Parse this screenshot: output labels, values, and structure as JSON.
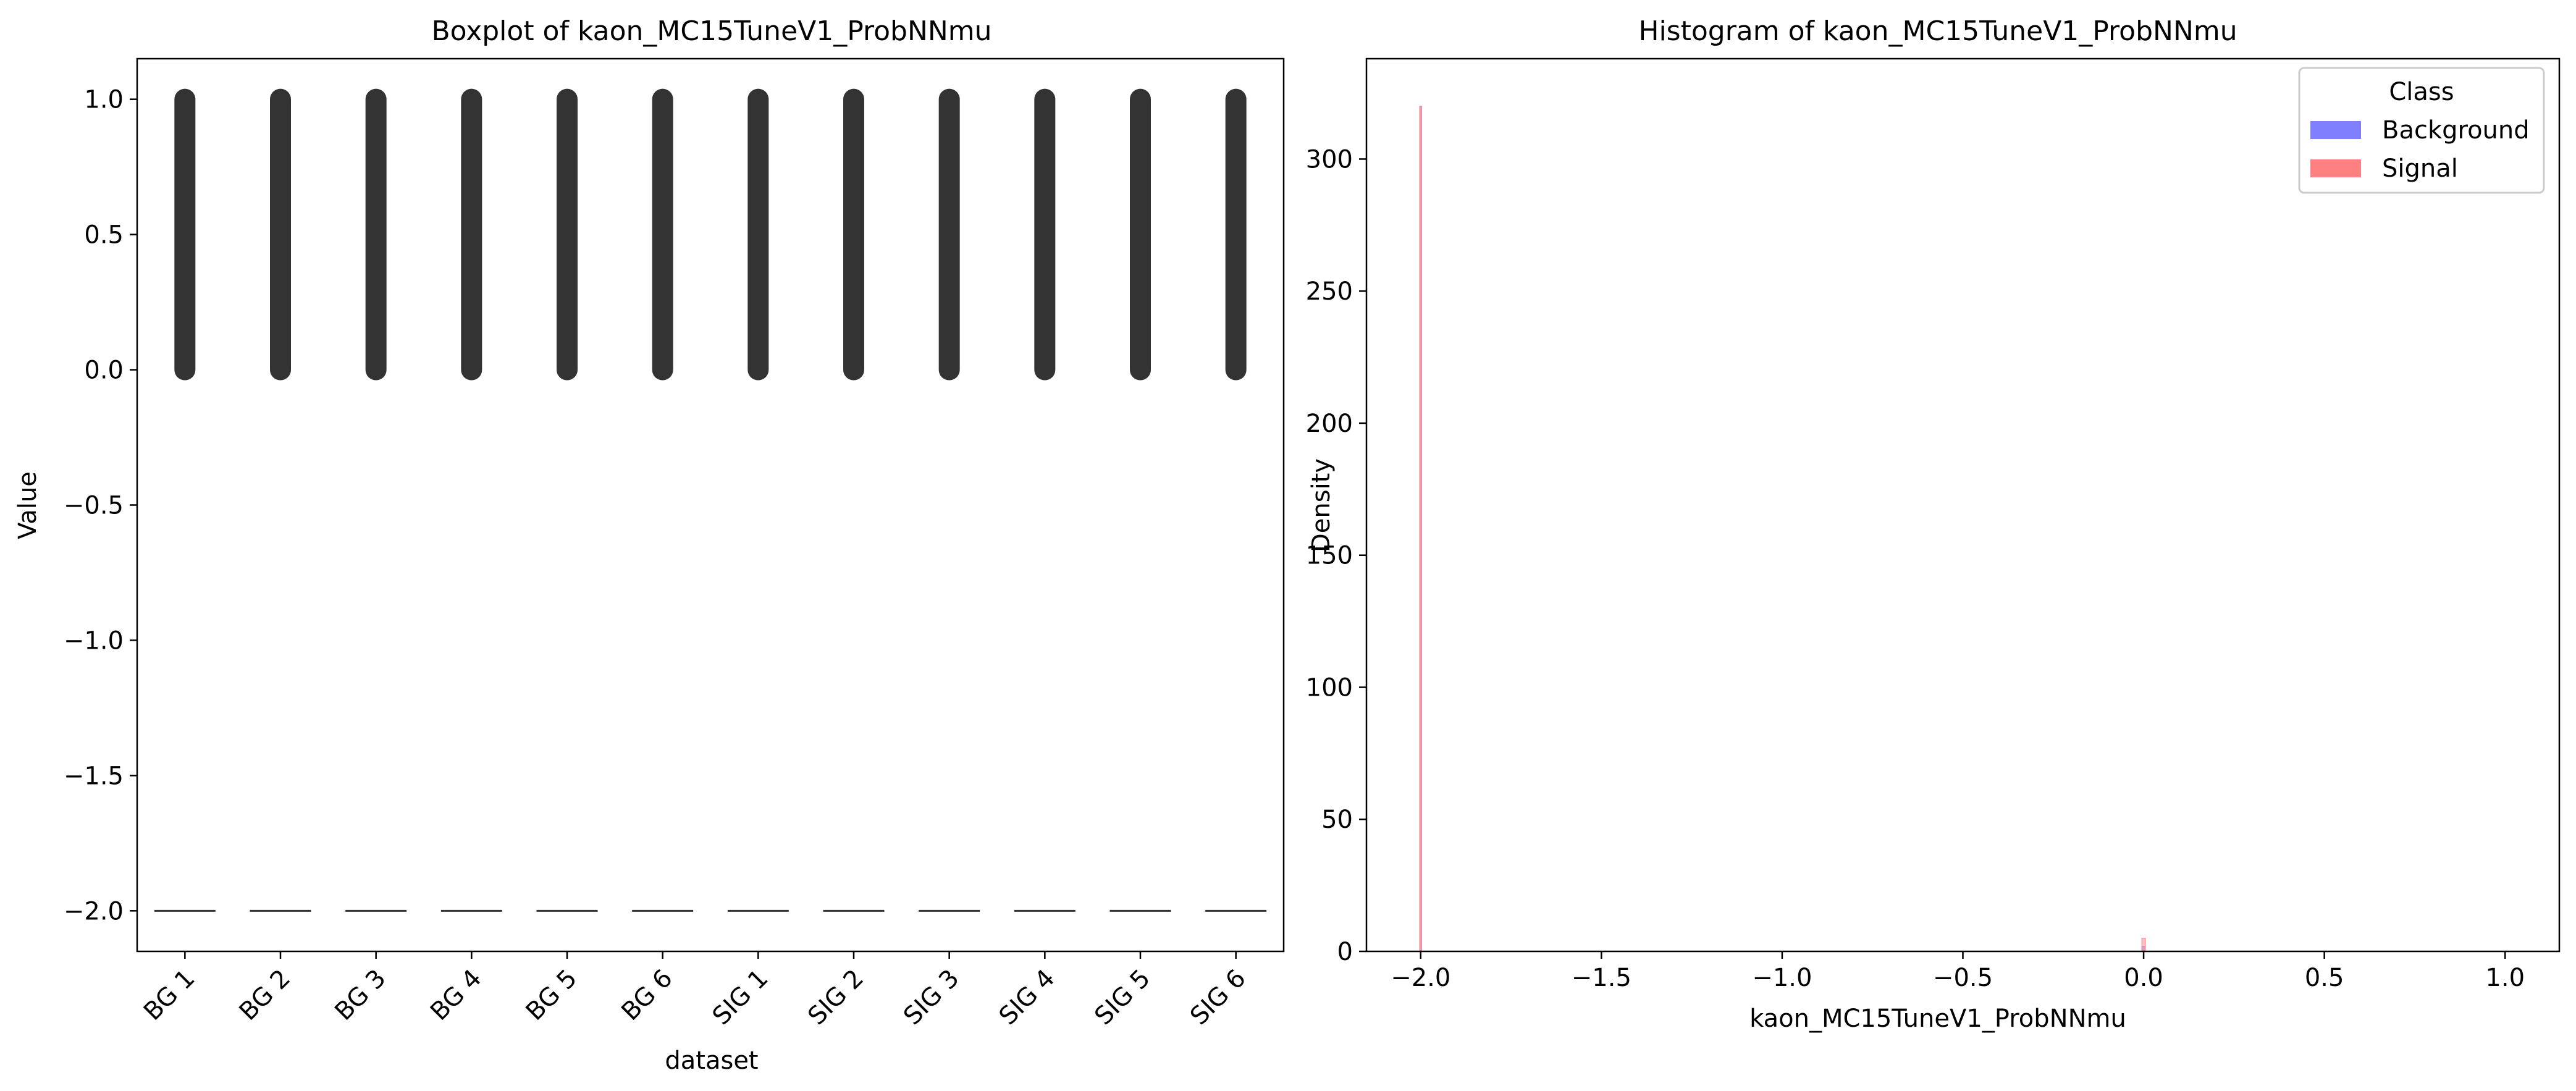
{
  "chart_data": [
    {
      "type": "box",
      "title": "Boxplot of kaon_MC15TuneV1_ProbNNmu",
      "xlabel": "dataset",
      "ylabel": "Value",
      "ylim": [
        -2.15,
        1.15
      ],
      "yticks": [
        1.0,
        0.5,
        0.0,
        -0.5,
        -1.0,
        -1.5,
        -2.0
      ],
      "ytick_labels": [
        "1.0",
        "0.5",
        "0.0",
        "−0.5",
        "−1.0",
        "−1.5",
        "−2.0"
      ],
      "categories": [
        "BG 1",
        "BG 2",
        "BG 3",
        "BG 4",
        "BG 5",
        "BG 6",
        "SIG 1",
        "SIG 2",
        "SIG 3",
        "SIG 4",
        "SIG 5",
        "SIG 6"
      ],
      "boxes": {
        "median": -2.0,
        "q1": -2.0,
        "q3": -2.0,
        "whisker_low": -2.0,
        "whisker_high": -2.0,
        "outlier_range": [
          0.0,
          1.0
        ]
      },
      "box_color": "#333333"
    },
    {
      "type": "histogram",
      "title": "Histogram of kaon_MC15TuneV1_ProbNNmu",
      "xlabel": "kaon_MC15TuneV1_ProbNNmu",
      "ylabel": "Density",
      "xlim": [
        -2.15,
        1.15
      ],
      "ylim": [
        0,
        338
      ],
      "xticks": [
        -2.0,
        -1.5,
        -1.0,
        -0.5,
        0.0,
        0.5,
        1.0
      ],
      "xtick_labels": [
        "−2.0",
        "−1.5",
        "−1.0",
        "−0.5",
        "0.0",
        "0.5",
        "1.0"
      ],
      "yticks": [
        0,
        50,
        100,
        150,
        200,
        250,
        300
      ],
      "ytick_labels": [
        "0",
        "50",
        "100",
        "150",
        "200",
        "250",
        "300"
      ],
      "legend": {
        "title": "Class",
        "placement": "top-right",
        "entries": [
          {
            "label": "Background",
            "color": "#8080ff"
          },
          {
            "label": "Signal",
            "color": "#ff8080"
          }
        ]
      },
      "series": [
        {
          "name": "Background",
          "color": "#8080ff",
          "bins": [
            {
              "x": -2.0,
              "width": 0.002,
              "density": 320
            },
            {
              "x": 0.0,
              "width": 0.01,
              "density": 2
            }
          ]
        },
        {
          "name": "Signal",
          "color": "#ff8080",
          "bins": [
            {
              "x": -2.0,
              "width": 0.002,
              "density": 320
            },
            {
              "x": 0.0,
              "width": 0.01,
              "density": 5
            }
          ]
        }
      ]
    }
  ]
}
